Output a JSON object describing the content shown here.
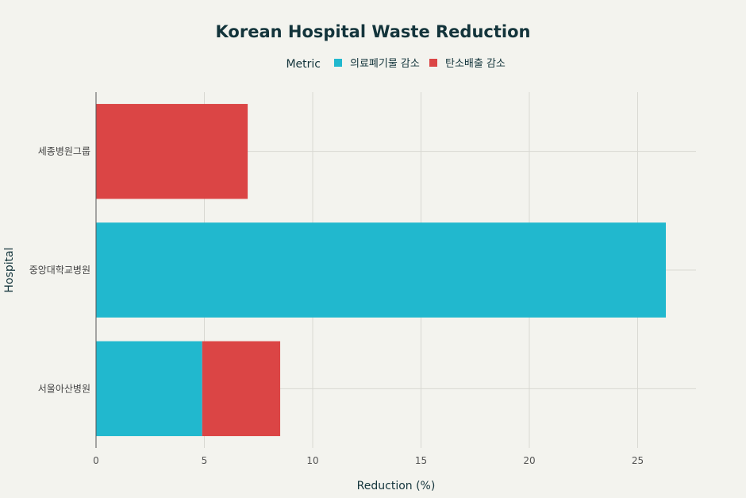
{
  "chart_data": {
    "type": "bar",
    "orientation": "horizontal",
    "stacked": true,
    "title": "Korean Hospital Waste Reduction",
    "xlabel": "Reduction (%)",
    "ylabel": "Hospital",
    "xlim": [
      0,
      28
    ],
    "xticks": [
      0,
      5,
      10,
      15,
      20,
      25
    ],
    "grid": true,
    "legend": {
      "title": "Metric",
      "position": "top"
    },
    "categories": [
      "세종병원그룹",
      "중앙대학교병원",
      "서울아산병원"
    ],
    "series": [
      {
        "name": "의료폐기물 감소",
        "color": "#21b8ce",
        "values": [
          0,
          26.3,
          4.9
        ]
      },
      {
        "name": "탄소배출 감소",
        "color": "#db4545",
        "values": [
          7.0,
          0,
          3.6
        ]
      }
    ]
  }
}
